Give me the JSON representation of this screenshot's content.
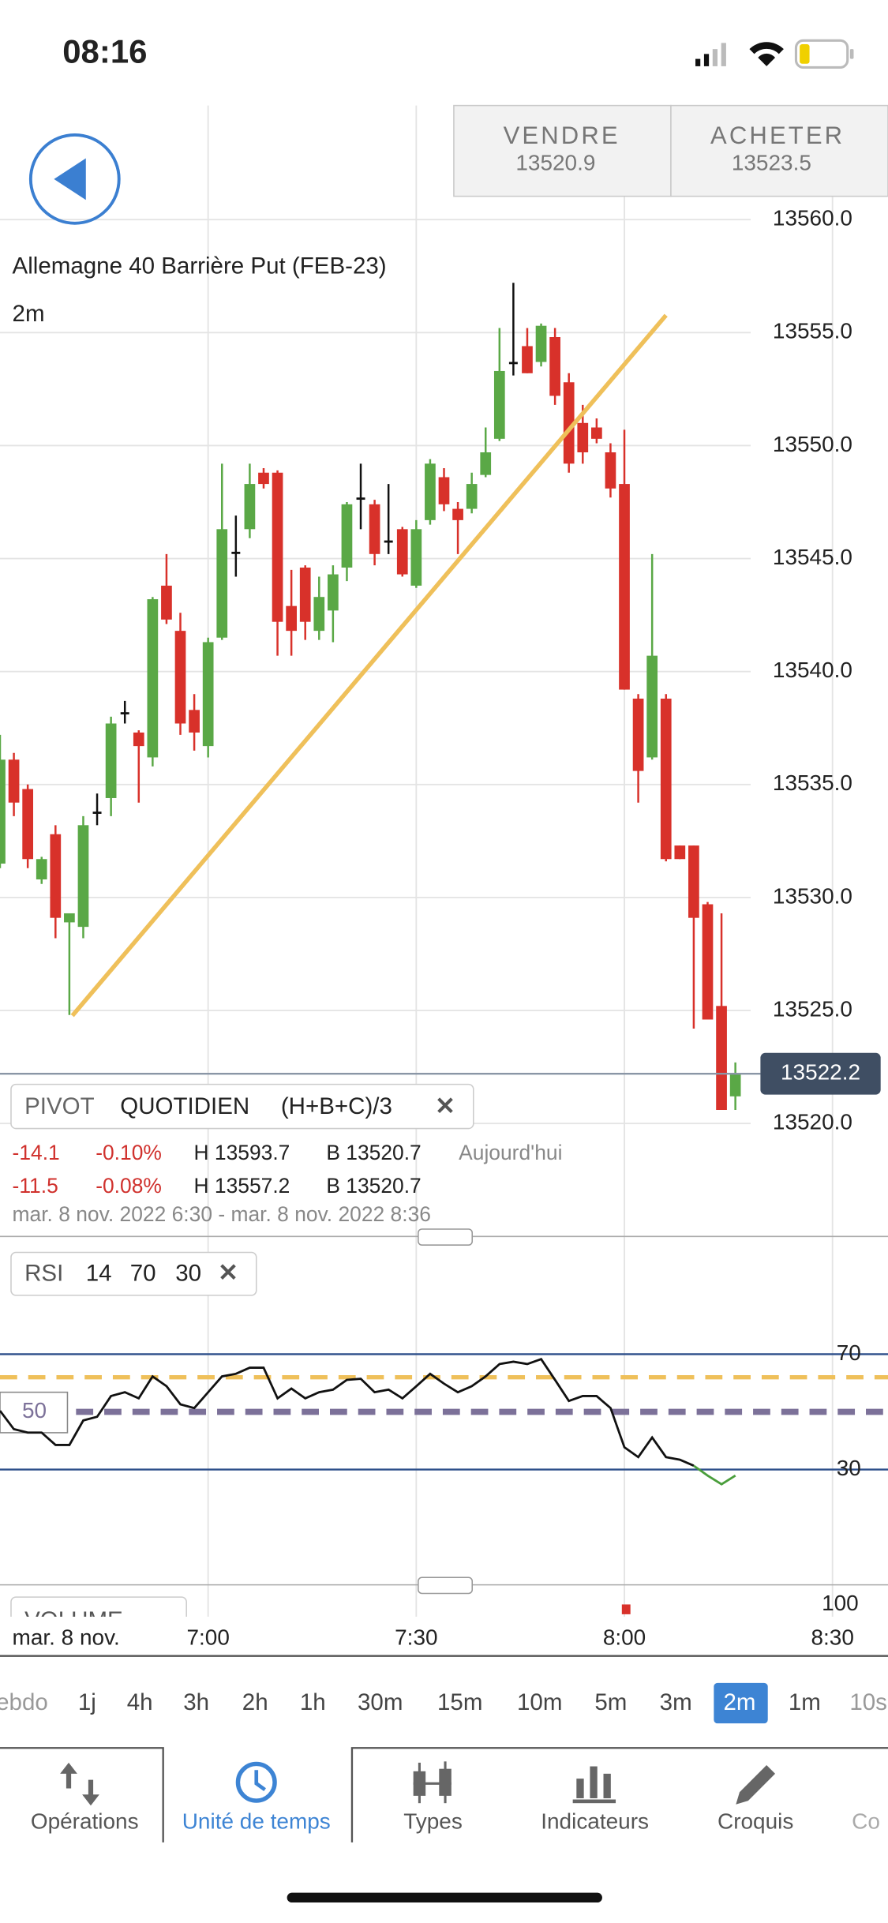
{
  "status_bar": {
    "time": "08:16"
  },
  "quote": {
    "sell_label": "VENDRE",
    "sell_price": 13520.9,
    "buy_label": "ACHETER",
    "buy_price": 13523.5
  },
  "chart_data": [
    {
      "type": "candlestick",
      "title": "Allemagne 40 Barrière Put (FEB-23)",
      "subtitle": "2m",
      "x": [
        "6:30",
        "6:32",
        "6:34",
        "6:36",
        "6:38",
        "6:40",
        "6:42",
        "6:44",
        "6:46",
        "6:48",
        "6:50",
        "6:52",
        "6:54",
        "6:56",
        "6:58",
        "7:00",
        "7:02",
        "7:04",
        "7:06",
        "7:08",
        "7:10",
        "7:12",
        "7:14",
        "7:16",
        "7:18",
        "7:20",
        "7:22",
        "7:24",
        "7:26",
        "7:28",
        "7:30",
        "7:32",
        "7:34",
        "7:36",
        "7:38",
        "7:40",
        "7:42",
        "7:44",
        "7:46",
        "7:48",
        "7:50",
        "7:52",
        "7:54",
        "7:56",
        "7:58",
        "8:00",
        "8:02",
        "8:04",
        "8:06",
        "8:08",
        "8:10",
        "8:12",
        "8:14",
        "8:16"
      ],
      "open": [
        13531.5,
        13536.1,
        13534.8,
        13530.8,
        13532.8,
        13528.9,
        13528.7,
        13533.8,
        13534.4,
        13538.2,
        13537.3,
        13536.2,
        13543.8,
        13541.8,
        13538.3,
        13536.7,
        13541.5,
        13545.3,
        13546.3,
        13548.8,
        13548.8,
        13542.9,
        13544.6,
        13541.8,
        13542.7,
        13544.6,
        13547.7,
        13547.4,
        13545.8,
        13546.3,
        13543.8,
        13546.7,
        13548.6,
        13547.2,
        13547.2,
        13548.7,
        13550.3,
        13553.7,
        13554.4,
        13553.7,
        13554.8,
        13552.8,
        13551.0,
        13550.8,
        13549.7,
        13548.3,
        13538.8,
        13536.2,
        13538.8,
        13532.3,
        13532.3,
        13529.7,
        13525.2,
        13521.2
      ],
      "high": [
        13537.2,
        13536.4,
        13535.0,
        13531.8,
        13533.2,
        13529.3,
        13533.6,
        13534.6,
        13538.0,
        13538.7,
        13537.4,
        13543.3,
        13545.2,
        13542.6,
        13539.0,
        13541.5,
        13549.2,
        13546.9,
        13549.2,
        13549.0,
        13548.9,
        13544.5,
        13544.7,
        13544.2,
        13544.7,
        13547.5,
        13549.2,
        13547.6,
        13548.3,
        13546.4,
        13546.7,
        13549.4,
        13549.0,
        13547.5,
        13548.8,
        13550.8,
        13555.2,
        13557.2,
        13555.2,
        13555.4,
        13555.2,
        13553.2,
        13551.8,
        13551.2,
        13550.1,
        13550.7,
        13539.0,
        13545.2,
        13539.0,
        13532.3,
        13532.3,
        13529.8,
        13529.3,
        13522.7
      ],
      "low": [
        13531.3,
        13533.6,
        13531.3,
        13530.6,
        13528.2,
        13524.8,
        13528.2,
        13533.2,
        13533.6,
        13537.7,
        13534.2,
        13535.8,
        13542.1,
        13537.2,
        13536.5,
        13536.2,
        13541.4,
        13544.2,
        13545.9,
        13548.1,
        13540.7,
        13540.7,
        13541.4,
        13541.4,
        13541.3,
        13544.0,
        13546.3,
        13544.7,
        13545.2,
        13544.2,
        13543.7,
        13546.5,
        13547.1,
        13545.2,
        13547.0,
        13548.6,
        13550.2,
        13553.1,
        13553.2,
        13553.5,
        13551.8,
        13548.8,
        13549.2,
        13550.1,
        13547.7,
        13539.2,
        13534.2,
        13536.1,
        13531.6,
        13531.7,
        13524.2,
        13524.6,
        13520.6,
        13520.6
      ],
      "close": [
        13536.1,
        13534.2,
        13531.7,
        13531.7,
        13529.1,
        13529.3,
        13533.2,
        13533.8,
        13537.7,
        13538.2,
        13536.7,
        13543.2,
        13542.3,
        13537.7,
        13537.3,
        13541.3,
        13546.3,
        13545.3,
        13548.3,
        13548.3,
        13542.2,
        13541.8,
        13542.2,
        13543.3,
        13544.3,
        13547.4,
        13547.7,
        13545.2,
        13545.8,
        13544.3,
        13546.3,
        13549.2,
        13547.4,
        13546.7,
        13548.3,
        13549.7,
        13553.3,
        13553.7,
        13553.2,
        13555.3,
        13552.2,
        13549.2,
        13549.7,
        13550.3,
        13548.1,
        13539.2,
        13535.6,
        13540.7,
        13531.7,
        13531.7,
        13529.1,
        13524.6,
        13520.6,
        13522.2
      ],
      "colors": {
        "up": "#5aa846",
        "down": "#d8312a",
        "flat": "#111111"
      },
      "last_price": 13522.2,
      "ylim": [
        13515,
        13565
      ],
      "yticks": [
        {
          "value": 13520,
          "label": "13520.0"
        },
        {
          "value": 13525,
          "label": "13525.0"
        },
        {
          "value": 13530,
          "label": "13530.0"
        },
        {
          "value": 13535,
          "label": "13535.0"
        },
        {
          "value": 13540,
          "label": "13540.0"
        },
        {
          "value": 13545,
          "label": "13545.0"
        },
        {
          "value": 13550,
          "label": "13550.0"
        },
        {
          "value": 13555,
          "label": "13555.0"
        },
        {
          "value": 13560,
          "label": "13560.0"
        }
      ],
      "xlim": [
        "6:30",
        "8:38"
      ],
      "xticks": [
        "7:00",
        "7:30",
        "8:00",
        "8:30"
      ],
      "x_date_label": "mar. 8 nov.",
      "grid": true
    },
    {
      "type": "line",
      "title": "RSI",
      "params": [
        14,
        70,
        30
      ],
      "values": [
        50.4,
        44.0,
        42.8,
        42.8,
        38.5,
        38.5,
        47.0,
        48.3,
        55.5,
        56.8,
        54.7,
        62.3,
        58.9,
        52.6,
        51.3,
        56.8,
        62.3,
        63.2,
        65.3,
        65.3,
        54.7,
        58.1,
        54.7,
        56.8,
        57.7,
        61.1,
        61.5,
        56.8,
        57.7,
        54.7,
        58.9,
        63.2,
        59.8,
        56.8,
        58.9,
        62.3,
        66.6,
        67.4,
        66.6,
        68.3,
        61.1,
        53.8,
        55.5,
        55.5,
        51.3,
        37.7,
        34.3,
        41.1,
        34.3,
        33.4,
        31.3,
        27.9,
        24.9,
        27.9
      ],
      "color": "#111111",
      "oversold_color": "#4a9e3c",
      "midline": 50,
      "signal_level": 62,
      "ylim": [
        0,
        90
      ],
      "yticks": [
        30,
        70
      ]
    }
  ],
  "pivot_panel": {
    "name": "PIVOT",
    "period": "QUOTIDIEN",
    "formula": "(H+B+C)/3",
    "rows": [
      [
        "-14.1",
        "-0.10%",
        "H 13593.7",
        "B 13520.7",
        "Aujourd'hui"
      ],
      [
        "-11.5",
        "-0.08%",
        "H 13557.2",
        "B 13520.7"
      ]
    ],
    "range": "mar. 8 nov. 2022 6:30 - mar. 8 nov. 2022 8:36"
  },
  "close_icon": "✕",
  "volume": {
    "label": "VOLUME",
    "ytick": 100
  },
  "timeframes": [
    "ebdo",
    "1j",
    "4h",
    "3h",
    "2h",
    "1h",
    "30m",
    "15m",
    "10m",
    "5m",
    "3m",
    "2m",
    "1m",
    "10s"
  ],
  "selected_timeframe": "2m",
  "tabs": [
    "Opérations",
    "Unité de temps",
    "Types",
    "Indicateurs",
    "Croquis",
    "Co"
  ]
}
